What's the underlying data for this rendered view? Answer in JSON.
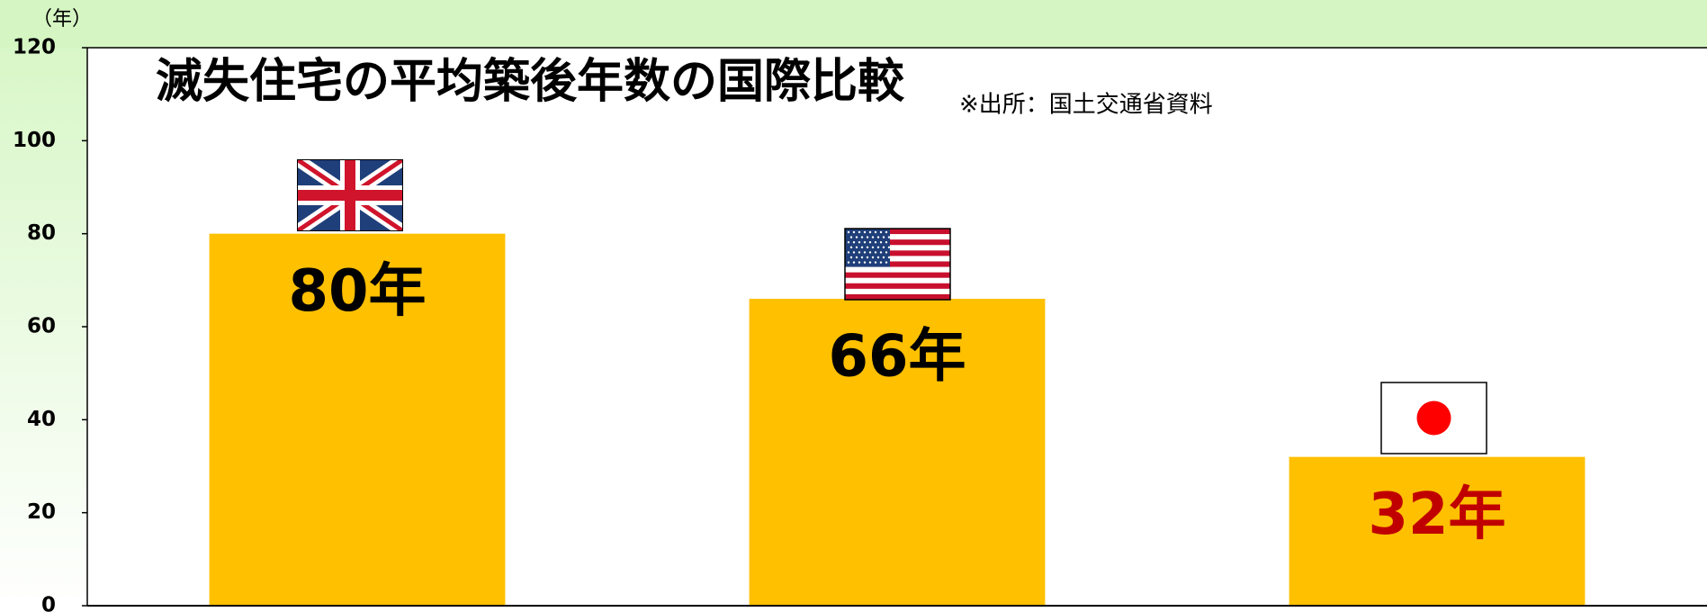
{
  "chart_data": {
    "type": "bar",
    "title": "滅失住宅の平均築後年数の国際比較",
    "subtitle": "※出所：国土交通省資料",
    "y_unit": "（年）",
    "categories": [
      null,
      null,
      null
    ],
    "values": [
      80,
      66,
      32
    ],
    "value_labels": [
      "80年",
      "66年",
      "32年"
    ],
    "value_label_colors": [
      "#000000",
      "#000000",
      "#c00000"
    ],
    "color": "#ffc000",
    "ylim": [
      0,
      120
    ],
    "yticks": [
      0,
      20,
      40,
      60,
      80,
      100,
      120
    ],
    "grid": false
  }
}
